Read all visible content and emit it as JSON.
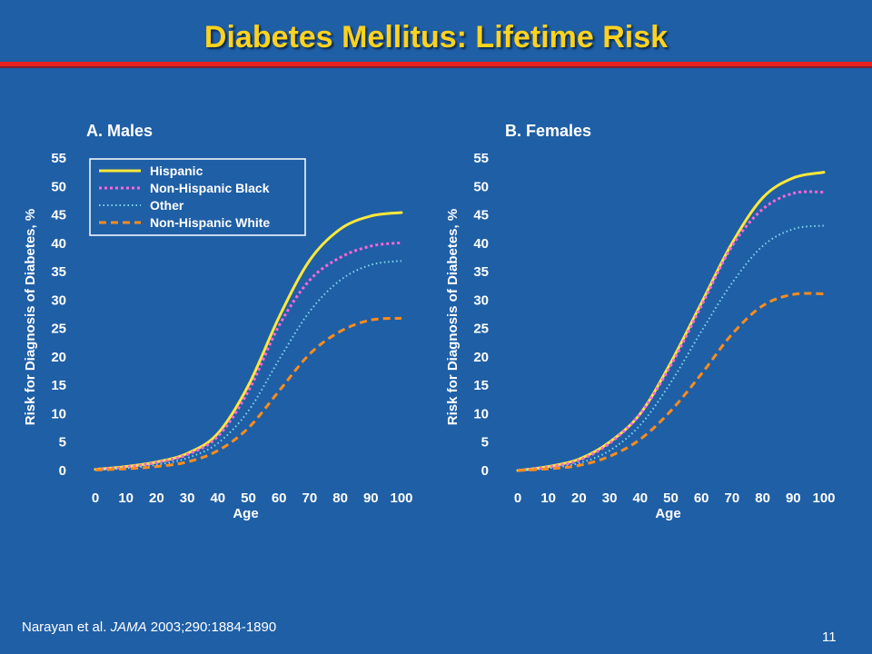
{
  "slide": {
    "title": "Diabetes Mellitus: Lifetime Risk",
    "citation_authors": "Narayan et al. ",
    "citation_journal": "JAMA",
    "citation_details": " 2003;290:1884-1890",
    "slide_number": "11",
    "colors": {
      "background": "#1f5fa6",
      "title": "#ffd21e",
      "rule": "#e8201e"
    }
  },
  "chart_data": [
    {
      "type": "line",
      "title": "A.  Males",
      "xlabel": "Age",
      "ylabel": "Risk for Diagnosis of Diabetes, %",
      "xlim": [
        0,
        100
      ],
      "ylim": [
        0,
        55
      ],
      "xticks": [
        "0",
        "10",
        "20",
        "30",
        "40",
        "50",
        "60",
        "70",
        "80",
        "90",
        "100"
      ],
      "yticks": [
        "0",
        "5",
        "10",
        "15",
        "20",
        "25",
        "30",
        "35",
        "40",
        "45",
        "50",
        "55"
      ],
      "legend_position": "top-left",
      "x": [
        0,
        10,
        20,
        30,
        40,
        50,
        60,
        70,
        80,
        90,
        100
      ],
      "series": [
        {
          "name": "Hispanic",
          "color": "#ffe83a",
          "dash": "solid",
          "values": [
            0.2,
            0.7,
            1.5,
            3,
            6.5,
            15,
            27,
            37,
            42.5,
            44.8,
            45.4
          ]
        },
        {
          "name": "Non-Hispanic Black",
          "color": "#ff66d8",
          "dash": "dotted",
          "values": [
            0.2,
            0.6,
            1.4,
            2.8,
            6,
            14,
            25.5,
            33.5,
            37.5,
            39.5,
            40.1
          ]
        },
        {
          "name": "Other",
          "color": "#7fd8ec",
          "dash": "fine-dotted",
          "values": [
            0.1,
            0.4,
            1,
            2.2,
            4.8,
            10.5,
            19.5,
            28,
            33.5,
            36.2,
            36.9
          ]
        },
        {
          "name": "Non-Hispanic White",
          "color": "#ff8c1a",
          "dash": "dashed",
          "values": [
            0.1,
            0.3,
            0.7,
            1.5,
            3.5,
            7.5,
            14,
            20.5,
            24.5,
            26.5,
            26.8
          ]
        }
      ]
    },
    {
      "type": "line",
      "title": "B.  Females",
      "xlabel": "Age",
      "ylabel": "Risk for Diagnosis of Diabetes, %",
      "xlim": [
        0,
        100
      ],
      "ylim": [
        0,
        55
      ],
      "xticks": [
        "0",
        "10",
        "20",
        "30",
        "40",
        "50",
        "60",
        "70",
        "80",
        "90",
        "100"
      ],
      "yticks": [
        "0",
        "5",
        "10",
        "15",
        "20",
        "25",
        "30",
        "35",
        "40",
        "45",
        "50",
        "55"
      ],
      "x": [
        0,
        10,
        20,
        30,
        40,
        50,
        60,
        70,
        80,
        90,
        100
      ],
      "series": [
        {
          "name": "Hispanic",
          "color": "#ffe83a",
          "dash": "solid",
          "values": [
            0,
            0.7,
            2,
            5,
            10,
            19,
            29.5,
            40,
            48,
            51.5,
            52.5
          ]
        },
        {
          "name": "Non-Hispanic Black",
          "color": "#ff66d8",
          "dash": "dotted",
          "values": [
            0,
            0.6,
            1.8,
            4.8,
            10,
            18.5,
            29,
            39.5,
            46,
            48.8,
            49
          ]
        },
        {
          "name": "Other",
          "color": "#7fd8ec",
          "dash": "fine-dotted",
          "values": [
            0,
            0.4,
            1.3,
            3.5,
            8,
            15.5,
            24.5,
            33,
            39.5,
            42.5,
            43.1
          ]
        },
        {
          "name": "Non-Hispanic White",
          "color": "#ff8c1a",
          "dash": "dashed",
          "values": [
            0,
            0.3,
            0.9,
            2.5,
            5.5,
            10.5,
            17,
            24,
            29,
            31,
            31.1
          ]
        }
      ]
    }
  ]
}
